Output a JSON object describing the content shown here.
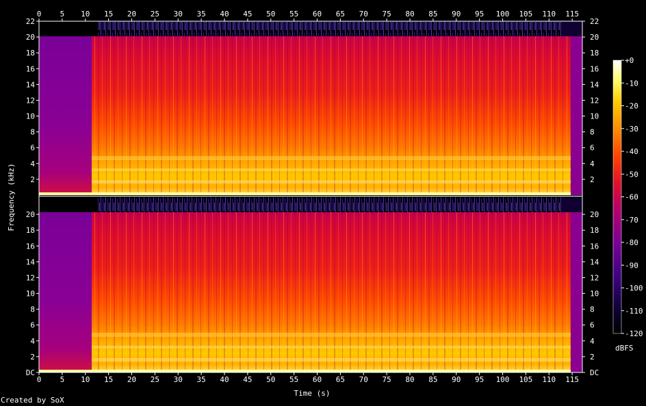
{
  "chart_data": {
    "type": "heatmap",
    "title": "",
    "xlabel": "Time (s)",
    "ylabel": "Frequency (kHz)",
    "xlim": [
      0,
      117.5
    ],
    "ylim_khz": [
      0,
      22
    ],
    "x_ticks": [
      "0",
      "5",
      "10",
      "15",
      "20",
      "25",
      "30",
      "35",
      "40",
      "45",
      "50",
      "55",
      "60",
      "65",
      "70",
      "75",
      "80",
      "85",
      "90",
      "95",
      "100",
      "105",
      "110",
      "115"
    ],
    "y_ticks_top": [
      "2",
      "4",
      "6",
      "8",
      "10",
      "12",
      "14",
      "16",
      "18",
      "20",
      "22"
    ],
    "y_ticks_bottom": [
      "DC",
      "2",
      "4",
      "6",
      "8",
      "10",
      "12",
      "14",
      "16",
      "18",
      "20"
    ],
    "channels": 2,
    "colorbar": {
      "label": "dBFS",
      "ticks": [
        "+0",
        "-10",
        "-20",
        "-30",
        "-40",
        "-50",
        "-60",
        "-70",
        "-80",
        "-90",
        "-100",
        "-110",
        "-120"
      ],
      "range": [
        -120,
        0
      ],
      "colors": [
        "#000000",
        "#1a0048",
        "#4a0090",
        "#8b0095",
        "#c0005a",
        "#e8140f",
        "#ff5a00",
        "#ffa000",
        "#ffd400",
        "#ffff80",
        "#ffffff"
      ]
    },
    "segments": [
      {
        "t_start": 0,
        "t_end": 11.5,
        "note": "quiet intro, content up to 20 kHz at about -80 dBFS"
      },
      {
        "t_start": 11.5,
        "t_end": 116,
        "note": "full band, strong below 5 kHz, about -50 dBFS up to 20 kHz"
      }
    ]
  },
  "credit": "Created by SoX"
}
